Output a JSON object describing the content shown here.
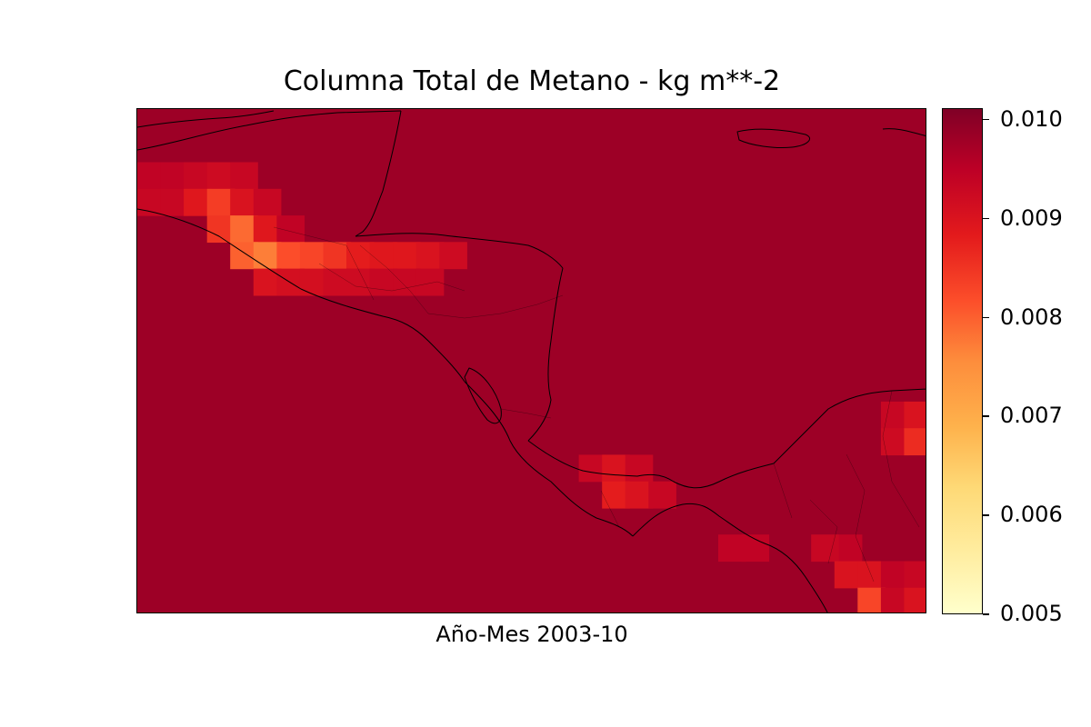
{
  "title": "Columna Total de Metano - kg m**-2",
  "xlabel": "Año-Mes 2003-10",
  "colorbar": {
    "min": 0.005,
    "max": 0.0101,
    "ticks": [
      {
        "value": 0.005,
        "label": "0.005"
      },
      {
        "value": 0.006,
        "label": "0.006"
      },
      {
        "value": 0.007,
        "label": "0.007"
      },
      {
        "value": 0.008,
        "label": "0.008"
      },
      {
        "value": 0.009,
        "label": "0.009"
      },
      {
        "value": 0.01,
        "label": "0.010"
      }
    ],
    "colormap": "YlOrRd",
    "colors": [
      "#ffffcc",
      "#ffeda0",
      "#fed976",
      "#feb24c",
      "#fd8d3c",
      "#fc4e2a",
      "#e31a1c",
      "#bd0026",
      "#800026"
    ]
  },
  "chart_data": {
    "type": "heatmap",
    "title": "Columna Total de Metano - kg m**-2",
    "xlabel": "Año-Mes 2003-10",
    "value_range": [
      0.005,
      0.0101
    ],
    "background_value": 0.0098,
    "anomaly_cells": [
      {
        "col": 0,
        "row": 2,
        "value": 0.0094
      },
      {
        "col": 1,
        "row": 2,
        "value": 0.0094
      },
      {
        "col": 2,
        "row": 2,
        "value": 0.0093
      },
      {
        "col": 3,
        "row": 2,
        "value": 0.0092
      },
      {
        "col": 4,
        "row": 2,
        "value": 0.0093
      },
      {
        "col": 0,
        "row": 3,
        "value": 0.0093
      },
      {
        "col": 1,
        "row": 3,
        "value": 0.0093
      },
      {
        "col": 2,
        "row": 3,
        "value": 0.0089
      },
      {
        "col": 3,
        "row": 3,
        "value": 0.0084
      },
      {
        "col": 4,
        "row": 3,
        "value": 0.009
      },
      {
        "col": 5,
        "row": 3,
        "value": 0.0093
      },
      {
        "col": 3,
        "row": 4,
        "value": 0.0085
      },
      {
        "col": 4,
        "row": 4,
        "value": 0.0079
      },
      {
        "col": 5,
        "row": 4,
        "value": 0.0089
      },
      {
        "col": 6,
        "row": 4,
        "value": 0.0094
      },
      {
        "col": 4,
        "row": 5,
        "value": 0.008
      },
      {
        "col": 5,
        "row": 5,
        "value": 0.0077
      },
      {
        "col": 6,
        "row": 5,
        "value": 0.0082
      },
      {
        "col": 7,
        "row": 5,
        "value": 0.0083
      },
      {
        "col": 8,
        "row": 5,
        "value": 0.0085
      },
      {
        "col": 9,
        "row": 5,
        "value": 0.0088
      },
      {
        "col": 10,
        "row": 5,
        "value": 0.0089
      },
      {
        "col": 11,
        "row": 5,
        "value": 0.0089
      },
      {
        "col": 12,
        "row": 5,
        "value": 0.009
      },
      {
        "col": 13,
        "row": 5,
        "value": 0.0092
      },
      {
        "col": 5,
        "row": 6,
        "value": 0.009
      },
      {
        "col": 6,
        "row": 6,
        "value": 0.0091
      },
      {
        "col": 7,
        "row": 6,
        "value": 0.0091
      },
      {
        "col": 8,
        "row": 6,
        "value": 0.0092
      },
      {
        "col": 9,
        "row": 6,
        "value": 0.0092
      },
      {
        "col": 10,
        "row": 6,
        "value": 0.0093
      },
      {
        "col": 11,
        "row": 6,
        "value": 0.0093
      },
      {
        "col": 12,
        "row": 6,
        "value": 0.0093
      },
      {
        "col": 19,
        "row": 13,
        "value": 0.0093
      },
      {
        "col": 20,
        "row": 13,
        "value": 0.009
      },
      {
        "col": 21,
        "row": 13,
        "value": 0.0093
      },
      {
        "col": 20,
        "row": 14,
        "value": 0.0088
      },
      {
        "col": 21,
        "row": 14,
        "value": 0.009
      },
      {
        "col": 22,
        "row": 14,
        "value": 0.0093
      },
      {
        "col": 32,
        "row": 11,
        "value": 0.0093
      },
      {
        "col": 33,
        "row": 11,
        "value": 0.009
      },
      {
        "col": 32,
        "row": 12,
        "value": 0.0092
      },
      {
        "col": 33,
        "row": 12,
        "value": 0.0086
      },
      {
        "col": 25,
        "row": 16,
        "value": 0.0094
      },
      {
        "col": 26,
        "row": 16,
        "value": 0.0094
      },
      {
        "col": 30,
        "row": 16,
        "value": 0.0094
      },
      {
        "col": 29,
        "row": 16,
        "value": 0.0093
      },
      {
        "col": 30,
        "row": 17,
        "value": 0.009
      },
      {
        "col": 31,
        "row": 17,
        "value": 0.009
      },
      {
        "col": 32,
        "row": 17,
        "value": 0.0094
      },
      {
        "col": 33,
        "row": 17,
        "value": 0.0093
      },
      {
        "col": 31,
        "row": 18,
        "value": 0.0083
      },
      {
        "col": 32,
        "row": 18,
        "value": 0.0093
      },
      {
        "col": 33,
        "row": 18,
        "value": 0.009
      },
      {
        "col": 31,
        "row": 19,
        "value": 0.0082
      },
      {
        "col": 32,
        "row": 19,
        "value": 0.0092
      },
      {
        "col": 33,
        "row": 19,
        "value": 0.0083
      }
    ],
    "grid": false
  }
}
